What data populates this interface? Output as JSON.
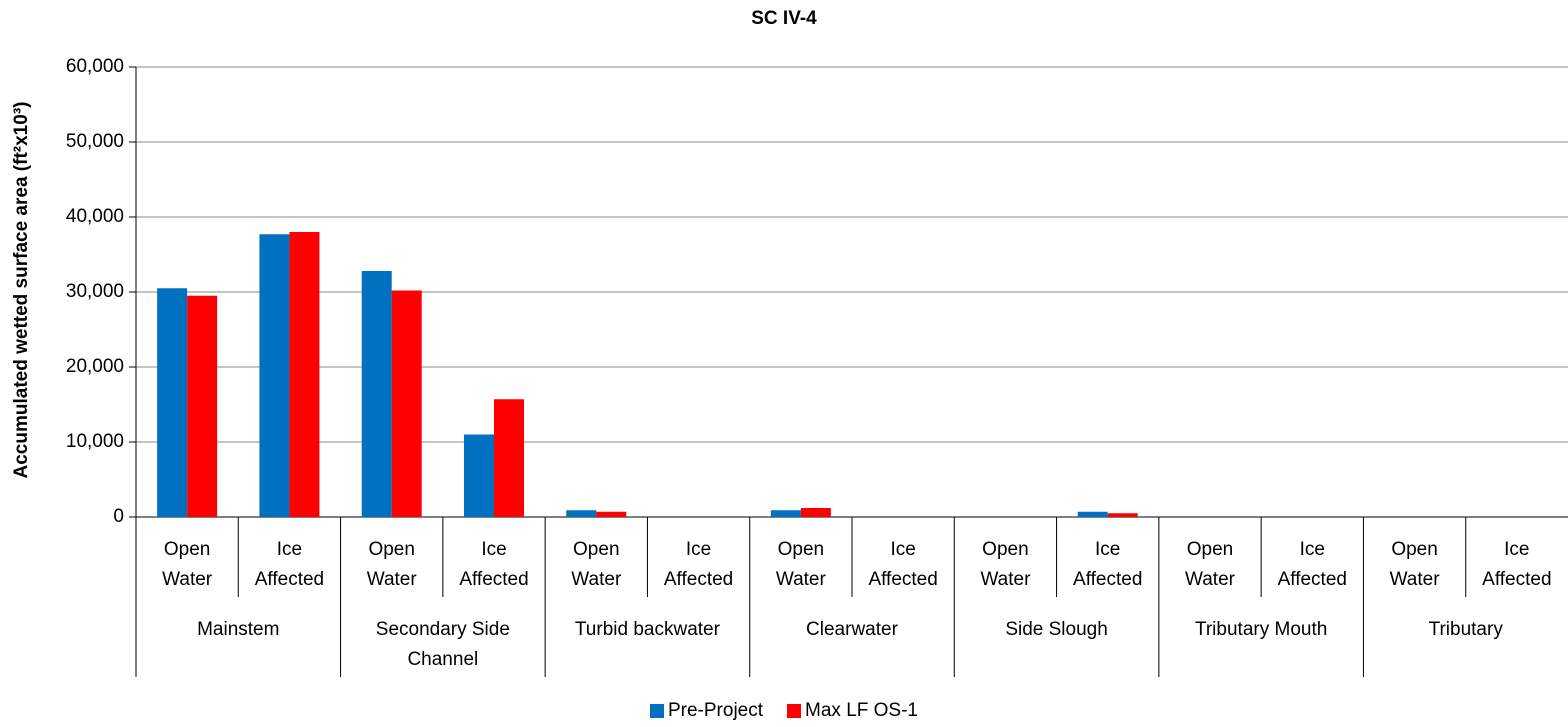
{
  "chart_data": {
    "type": "bar",
    "title": "SC IV-4",
    "y_label": "Accumulated wetted surface area (ft²x10³)",
    "groups": [
      {
        "name": "Mainstem",
        "categories": [
          "Open Water",
          "Ice Affected"
        ]
      },
      {
        "name": "Secondary Side Channel",
        "categories": [
          "Open Water",
          "Ice Affected"
        ]
      },
      {
        "name": "Turbid backwater",
        "categories": [
          "Open Water",
          "Ice Affected"
        ]
      },
      {
        "name": "Clearwater",
        "categories": [
          "Open Water",
          "Ice Affected"
        ]
      },
      {
        "name": "Side Slough",
        "categories": [
          "Open Water",
          "Ice Affected"
        ]
      },
      {
        "name": "Tributary Mouth",
        "categories": [
          "Open Water",
          "Ice Affected"
        ]
      },
      {
        "name": "Tributary",
        "categories": [
          "Open Water",
          "Ice Affected"
        ]
      }
    ],
    "series": [
      {
        "name": "Pre-Project",
        "color": "#0070c0",
        "values": [
          30500,
          37700,
          32800,
          11000,
          900,
          0,
          900,
          0,
          0,
          700,
          0,
          0,
          0,
          0
        ]
      },
      {
        "name": "Max LF OS-1",
        "color": "#ff0000",
        "values": [
          29500,
          38000,
          30200,
          15700,
          700,
          0,
          1200,
          0,
          0,
          500,
          0,
          0,
          0,
          0
        ]
      }
    ],
    "ylim": [
      0,
      60000
    ],
    "yticks": [
      0,
      {
        "value": 10000,
        "label": "10,000"
      },
      {
        "value": 20000,
        "label": "20,000"
      },
      {
        "value": 30000,
        "label": "30,000"
      },
      {
        "value": 40000,
        "label": "40,000"
      },
      {
        "value": 50000,
        "label": "50,000"
      },
      {
        "value": 60000,
        "label": "60,000"
      }
    ],
    "grid": true
  }
}
